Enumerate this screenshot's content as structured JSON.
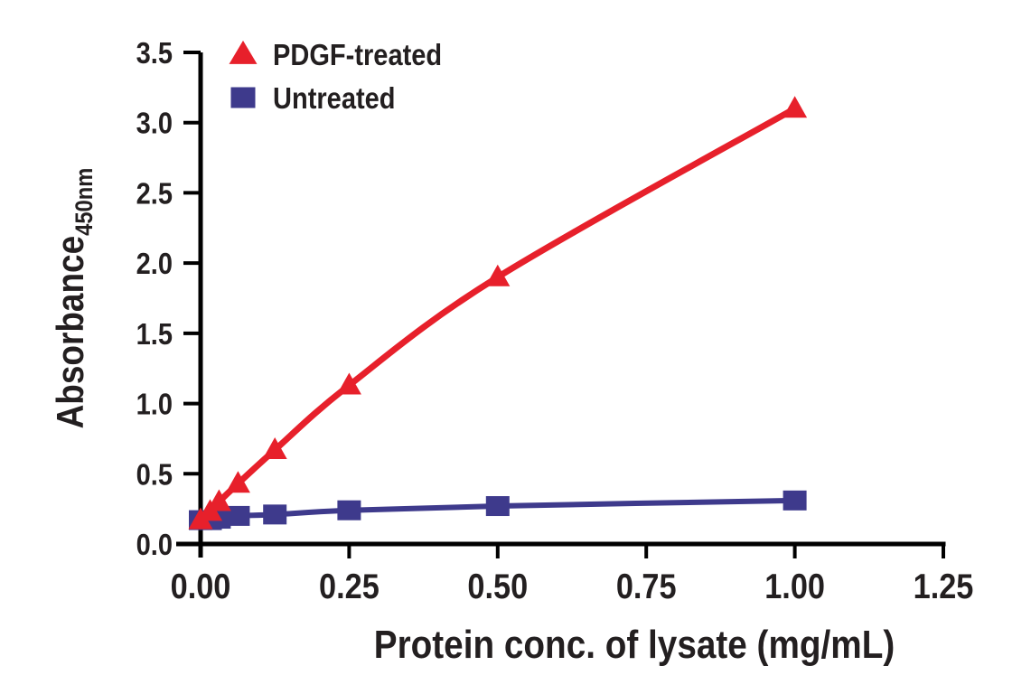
{
  "figure": {
    "background": "#ffffff",
    "text_color": "#231f20",
    "axis_color": "#000000"
  },
  "chart_data": {
    "type": "line",
    "title": "",
    "xlabel": "Protein conc. of lysate (mg/mL)",
    "ylabel": "Absorbance",
    "ylabel_subscript": "450nm",
    "xlim": [
      0,
      1.25
    ],
    "ylim": [
      0,
      3.5
    ],
    "grid": false,
    "legend_position": "top-left-inside",
    "xticks": {
      "values": [
        0,
        0.25,
        0.5,
        0.75,
        1.0,
        1.25
      ],
      "labels": [
        "0.00",
        "0.25",
        "0.50",
        "0.75",
        "1.00",
        "1.25"
      ]
    },
    "yticks": {
      "values": [
        0,
        0.5,
        1.0,
        1.5,
        2.0,
        2.5,
        3.0,
        3.5
      ],
      "labels": [
        "0.0",
        "0.5",
        "1.0",
        "1.5",
        "2.0",
        "2.5",
        "3.0",
        "3.5"
      ]
    },
    "x_shared": [
      0,
      0.016,
      0.031,
      0.063,
      0.125,
      0.25,
      0.5,
      1.0
    ],
    "series": [
      {
        "name": "Untreated",
        "marker": "square",
        "color": "#3e3a8c",
        "line_width": 6,
        "x": [
          0,
          0.016,
          0.031,
          0.063,
          0.125,
          0.25,
          0.5,
          1.0
        ],
        "y": [
          0.17,
          0.17,
          0.18,
          0.2,
          0.21,
          0.24,
          0.27,
          0.31
        ]
      },
      {
        "name": "PDGF-treated",
        "marker": "triangle",
        "color": "#e7202b",
        "line_width": 7,
        "x": [
          0,
          0.016,
          0.031,
          0.063,
          0.125,
          0.25,
          0.5,
          1.0
        ],
        "y": [
          0.17,
          0.23,
          0.3,
          0.43,
          0.67,
          1.13,
          1.9,
          3.1
        ]
      }
    ],
    "legend": [
      {
        "label": "PDGF-treated",
        "marker": "triangle",
        "color": "#e7202b"
      },
      {
        "label": "Untreated",
        "marker": "square",
        "color": "#3e3a8c"
      }
    ]
  }
}
